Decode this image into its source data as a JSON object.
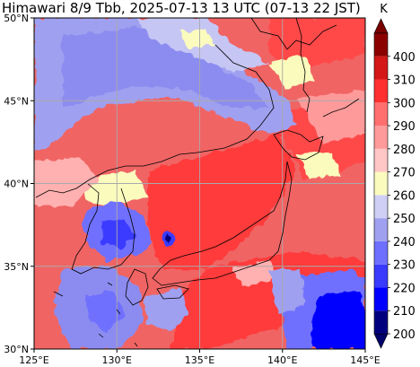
{
  "title": "Himawari 8/9 Tbb, 2025-07-13 13 UTC (07-13 22 JST)",
  "map": {
    "lon_range": [
      125,
      145
    ],
    "lat_range": [
      30,
      50
    ],
    "lon_ticks": [
      {
        "value": 125,
        "label": "125°E"
      },
      {
        "value": 130,
        "label": "130°E"
      },
      {
        "value": 135,
        "label": "135°E"
      },
      {
        "value": 140,
        "label": "140°E"
      },
      {
        "value": 145,
        "label": "145°E"
      }
    ],
    "lat_ticks": [
      {
        "value": 30,
        "label": "30°N"
      },
      {
        "value": 35,
        "label": "35°N"
      },
      {
        "value": 40,
        "label": "40°N"
      },
      {
        "value": 45,
        "label": "45°N"
      },
      {
        "value": 50,
        "label": "50°N"
      }
    ],
    "grid": true
  },
  "colorbar": {
    "unit": "K",
    "extend": "both",
    "levels": [
      200,
      210,
      220,
      230,
      240,
      250,
      260,
      270,
      280,
      290,
      300,
      310,
      400
    ],
    "labels": [
      "200",
      "210",
      "220",
      "230",
      "240",
      "250",
      "260",
      "270",
      "280",
      "290",
      "300",
      "310",
      "400"
    ],
    "colors": [
      "#00007f",
      "#0000ff",
      "#3a3aff",
      "#6f6fff",
      "#a0a0f0",
      "#cfcff5",
      "#fbfbbe",
      "#ffc6c6",
      "#ff9a9a",
      "#ff6f6f",
      "#ff3030",
      "#d41818",
      "#8b0000"
    ],
    "under_color": "#00006a",
    "over_color": "#7a0000"
  },
  "colors": {
    "background": "#f06464",
    "cold_cloud": "#8c8cf0",
    "cirrus": "#b8b8f0",
    "warm_land": "#ff3a3a",
    "coast": "#000000",
    "grid": "#aaaaaa"
  }
}
